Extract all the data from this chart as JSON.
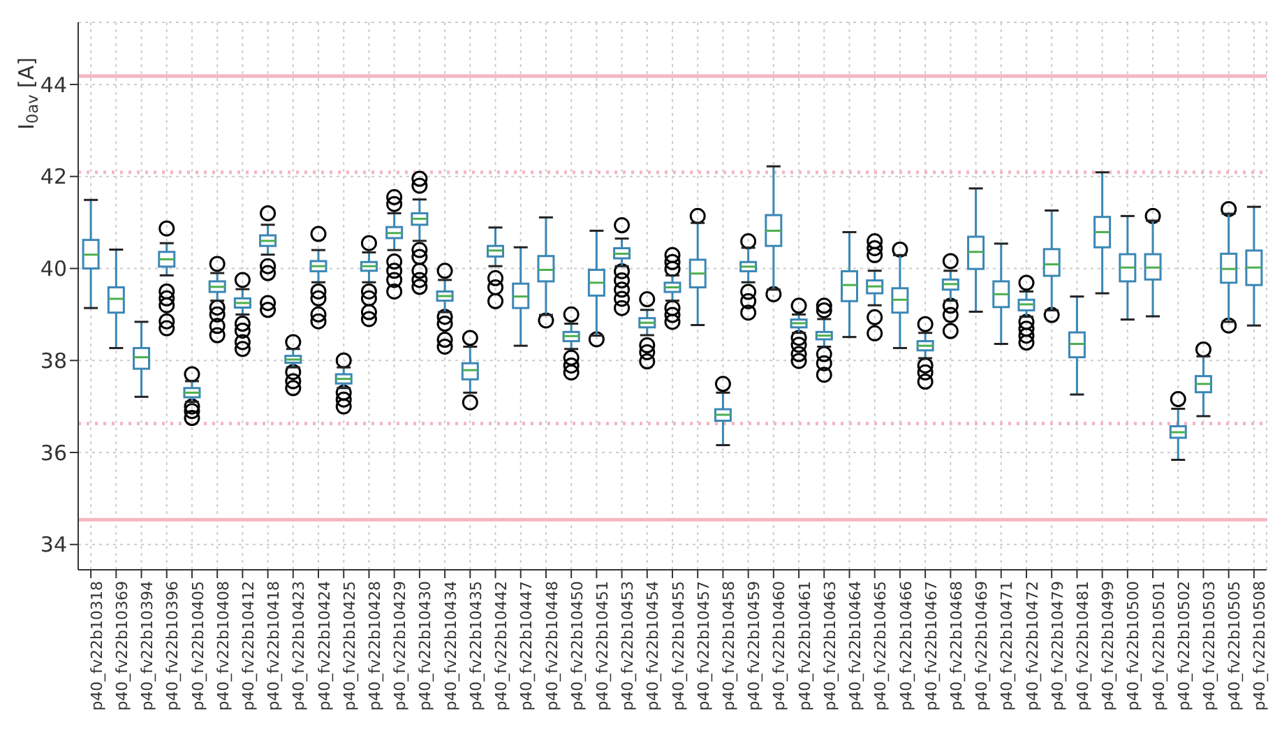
{
  "chart_data": {
    "type": "box",
    "ylabel": "I$_{0av}$ [A]",
    "categories": [
      "p40_fv22b10318",
      "p40_fv22b10369",
      "p40_fv22b10394",
      "p40_fv22b10396",
      "p40_fv22b10405",
      "p40_fv22b10408",
      "p40_fv22b10412",
      "p40_fv22b10418",
      "p40_fv22b10423",
      "p40_fv22b10424",
      "p40_fv22b10425",
      "p40_fv22b10428",
      "p40_fv22b10429",
      "p40_fv22b10430",
      "p40_fv22b10434",
      "p40_fv22b10435",
      "p40_fv22b10442",
      "p40_fv22b10447",
      "p40_fv22b10448",
      "p40_fv22b10450",
      "p40_fv22b10451",
      "p40_fv22b10453",
      "p40_fv22b10454",
      "p40_fv22b10455",
      "p40_fv22b10457",
      "p40_fv22b10458",
      "p40_fv22b10459",
      "p40_fv22b10460",
      "p40_fv22b10461",
      "p40_fv22b10463",
      "p40_fv22b10464",
      "p40_fv22b10465",
      "p40_fv22b10466",
      "p40_fv22b10467",
      "p40_fv22b10468",
      "p40_fv22b10469",
      "p40_fv22b10471",
      "p40_fv22b10472",
      "p40_fv22b10479",
      "p40_fv22b10481",
      "p40_fv22b10499",
      "p40_fv22b10500",
      "p40_fv22b10501",
      "p40_fv22b10502",
      "p40_fv22b10503",
      "p40_fv22b10505",
      "p40_fv22b10508"
    ],
    "series": [
      {
        "color": "#3b87b5",
        "boxes": [
          {
            "low": 39.14,
            "q1": 40.0,
            "median": 40.3,
            "q3": 40.62,
            "high": 41.49
          },
          {
            "low": 38.27,
            "q1": 39.04,
            "median": 39.34,
            "q3": 39.59,
            "high": 40.41
          },
          {
            "low": 37.21,
            "q1": 37.82,
            "median": 38.07,
            "q3": 38.27,
            "high": 38.84
          },
          {
            "low": 39.85,
            "q1": 40.04,
            "median": 40.2,
            "q3": 40.36,
            "high": 40.55,
            "outliers": [
              40.87,
              39.5,
              39.35,
              39.2,
              38.85,
              38.7
            ]
          },
          {
            "low": 37.1,
            "q1": 37.2,
            "median": 37.3,
            "q3": 37.4,
            "high": 37.55,
            "outliers": [
              37.7,
              37.0,
              36.9,
              36.75
            ]
          },
          {
            "low": 39.3,
            "q1": 39.49,
            "median": 39.6,
            "q3": 39.72,
            "high": 39.9,
            "outliers": [
              40.1,
              39.15,
              39.0,
              38.75,
              38.55
            ]
          },
          {
            "low": 39.0,
            "q1": 39.15,
            "median": 39.25,
            "q3": 39.35,
            "high": 39.55,
            "outliers": [
              39.75,
              38.8,
              38.65,
              38.4,
              38.25
            ]
          },
          {
            "low": 40.3,
            "q1": 40.49,
            "median": 40.6,
            "q3": 40.72,
            "high": 40.95,
            "outliers": [
              41.2,
              40.05,
              39.9,
              39.25,
              39.1
            ]
          },
          {
            "low": 37.85,
            "q1": 37.95,
            "median": 38.02,
            "q3": 38.1,
            "high": 38.25,
            "outliers": [
              38.4,
              37.75,
              37.55,
              37.4
            ]
          },
          {
            "low": 39.7,
            "q1": 39.94,
            "median": 40.05,
            "q3": 40.16,
            "high": 40.4,
            "outliers": [
              40.75,
              39.5,
              39.35,
              39.0,
              38.85
            ]
          },
          {
            "low": 37.4,
            "q1": 37.5,
            "median": 37.6,
            "q3": 37.7,
            "high": 37.85,
            "outliers": [
              38.0,
              37.3,
              37.15,
              37.0
            ]
          },
          {
            "low": 39.7,
            "q1": 39.95,
            "median": 40.05,
            "q3": 40.14,
            "high": 40.35,
            "outliers": [
              40.55,
              39.5,
              39.35,
              39.05,
              38.9
            ]
          },
          {
            "low": 40.4,
            "q1": 40.66,
            "median": 40.77,
            "q3": 40.9,
            "high": 41.2,
            "outliers": [
              41.55,
              41.4,
              40.15,
              39.95,
              39.75,
              39.5
            ]
          },
          {
            "low": 40.6,
            "q1": 40.95,
            "median": 41.08,
            "q3": 41.2,
            "high": 41.5,
            "outliers": [
              41.95,
              41.8,
              40.4,
              40.25,
              39.95,
              39.75,
              39.6
            ]
          },
          {
            "low": 39.05,
            "q1": 39.3,
            "median": 39.4,
            "q3": 39.5,
            "high": 39.75,
            "outliers": [
              39.95,
              38.95,
              38.8,
              38.45,
              38.3
            ]
          },
          {
            "low": 37.3,
            "q1": 37.59,
            "median": 37.79,
            "q3": 37.94,
            "high": 38.3,
            "outliers": [
              38.49,
              37.09
            ]
          },
          {
            "low": 40.05,
            "q1": 40.26,
            "median": 40.39,
            "q3": 40.49,
            "high": 40.89,
            "outliers": [
              39.79,
              39.59,
              39.29
            ]
          },
          {
            "low": 38.32,
            "q1": 39.14,
            "median": 39.39,
            "q3": 39.67,
            "high": 40.46
          },
          {
            "low": 38.99,
            "q1": 39.72,
            "median": 39.97,
            "q3": 40.27,
            "high": 41.11,
            "outliers": [
              38.87
            ]
          },
          {
            "low": 38.25,
            "q1": 38.42,
            "median": 38.53,
            "q3": 38.62,
            "high": 38.8,
            "outliers": [
              39.0,
              38.06,
              37.89,
              37.74
            ]
          },
          {
            "low": 38.54,
            "q1": 39.41,
            "median": 39.69,
            "q3": 39.97,
            "high": 40.82,
            "outliers": [
              38.46
            ]
          },
          {
            "low": 40.05,
            "q1": 40.22,
            "median": 40.32,
            "q3": 40.44,
            "high": 40.65,
            "outliers": [
              40.94,
              39.94,
              39.74,
              39.54,
              39.34,
              39.14
            ]
          },
          {
            "low": 38.55,
            "q1": 38.72,
            "median": 38.82,
            "q3": 38.92,
            "high": 39.1,
            "outliers": [
              39.33,
              38.33,
              38.18,
              37.98
            ]
          },
          {
            "low": 39.3,
            "q1": 39.49,
            "median": 39.59,
            "q3": 39.69,
            "high": 39.85,
            "outliers": [
              40.29,
              40.14,
              39.99,
              39.14,
              38.99,
              38.84
            ]
          },
          {
            "low": 38.77,
            "q1": 39.59,
            "median": 39.89,
            "q3": 40.19,
            "high": 40.99,
            "outliers": [
              41.14
            ]
          },
          {
            "low": 36.16,
            "q1": 36.69,
            "median": 36.82,
            "q3": 36.94,
            "high": 37.3,
            "outliers": [
              37.49
            ]
          },
          {
            "low": 39.7,
            "q1": 39.94,
            "median": 40.04,
            "q3": 40.14,
            "high": 40.45,
            "outliers": [
              40.59,
              39.49,
              39.29,
              39.04
            ]
          },
          {
            "low": 39.54,
            "q1": 40.49,
            "median": 40.82,
            "q3": 41.16,
            "high": 42.22,
            "outliers": [
              39.44
            ]
          },
          {
            "low": 38.6,
            "q1": 38.72,
            "median": 38.81,
            "q3": 38.89,
            "high": 39.0,
            "outliers": [
              39.19,
              38.49,
              38.34,
              38.14,
              37.99
            ]
          },
          {
            "low": 38.3,
            "q1": 38.46,
            "median": 38.54,
            "q3": 38.62,
            "high": 38.9,
            "outliers": [
              39.19,
              39.09,
              38.14,
              37.94,
              37.69
            ]
          },
          {
            "low": 38.51,
            "q1": 39.29,
            "median": 39.64,
            "q3": 39.94,
            "high": 40.79
          },
          {
            "low": 39.2,
            "q1": 39.46,
            "median": 39.61,
            "q3": 39.74,
            "high": 39.95,
            "outliers": [
              40.59,
              40.44,
              40.29,
              38.94,
              38.59
            ]
          },
          {
            "low": 38.27,
            "q1": 39.04,
            "median": 39.32,
            "q3": 39.57,
            "high": 40.29,
            "outliers": [
              40.41
            ]
          },
          {
            "low": 38.05,
            "q1": 38.22,
            "median": 38.32,
            "q3": 38.42,
            "high": 38.6,
            "outliers": [
              38.79,
              37.89,
              37.74,
              37.54
            ]
          },
          {
            "low": 39.3,
            "q1": 39.54,
            "median": 39.66,
            "q3": 39.76,
            "high": 39.95,
            "outliers": [
              40.16,
              39.19,
              38.99,
              38.64
            ]
          },
          {
            "low": 39.06,
            "q1": 39.99,
            "median": 40.36,
            "q3": 40.69,
            "high": 41.74
          },
          {
            "low": 38.36,
            "q1": 39.16,
            "median": 39.44,
            "q3": 39.72,
            "high": 40.54
          },
          {
            "low": 38.95,
            "q1": 39.09,
            "median": 39.22,
            "q3": 39.32,
            "high": 39.5,
            "outliers": [
              39.69,
              38.84,
              38.69,
              38.54,
              38.39
            ]
          },
          {
            "low": 39.09,
            "q1": 39.84,
            "median": 40.09,
            "q3": 40.42,
            "high": 41.26,
            "outliers": [
              38.99
            ]
          },
          {
            "low": 37.26,
            "q1": 38.07,
            "median": 38.36,
            "q3": 38.61,
            "high": 39.39
          },
          {
            "low": 39.46,
            "q1": 40.46,
            "median": 40.79,
            "q3": 41.12,
            "high": 42.09
          },
          {
            "low": 38.89,
            "q1": 39.72,
            "median": 40.02,
            "q3": 40.31,
            "high": 41.14
          },
          {
            "low": 38.96,
            "q1": 39.76,
            "median": 40.02,
            "q3": 40.31,
            "high": 41.04,
            "outliers": [
              41.14
            ]
          },
          {
            "low": 35.84,
            "q1": 36.32,
            "median": 36.44,
            "q3": 36.57,
            "high": 36.95,
            "outliers": [
              37.16
            ]
          },
          {
            "low": 36.79,
            "q1": 37.31,
            "median": 37.49,
            "q3": 37.66,
            "high": 38.09,
            "outliers": [
              38.24
            ]
          },
          {
            "low": 38.84,
            "q1": 39.69,
            "median": 39.99,
            "q3": 40.32,
            "high": 41.19,
            "outliers": [
              41.29,
              38.76
            ]
          },
          {
            "low": 38.76,
            "q1": 39.64,
            "median": 40.02,
            "q3": 40.39,
            "high": 41.34
          }
        ]
      }
    ],
    "ylim": [
      33.45,
      45.35
    ],
    "yticks": [
      34,
      36,
      38,
      40,
      42,
      44
    ],
    "grid": true,
    "ref_lines": [
      {
        "axis": "y",
        "value": 44.18,
        "color": "#f4b6c2",
        "line_style": "solid"
      },
      {
        "axis": "y",
        "value": 42.09,
        "color": "#f4b6c2",
        "line_style": "dotted"
      },
      {
        "axis": "y",
        "value": 36.63,
        "color": "#f4b6c2",
        "line_style": "dotted"
      },
      {
        "axis": "y",
        "value": 34.54,
        "color": "#f4b6c2",
        "line_style": "solid"
      }
    ]
  }
}
